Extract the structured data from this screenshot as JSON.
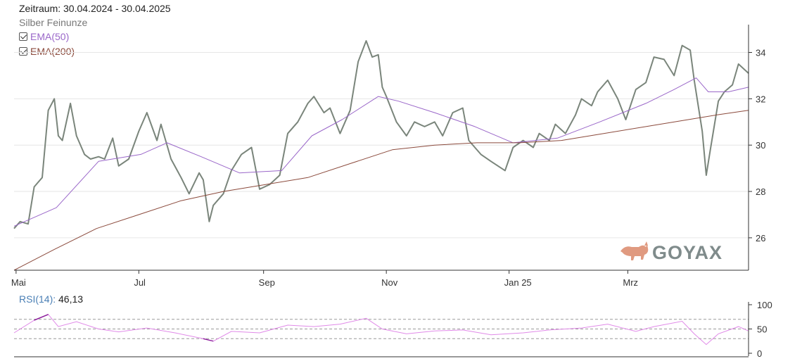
{
  "header": {
    "period": "Zeitraum: 30.04.2024 - 30.04.2025",
    "instrument": "Silber Feinunze"
  },
  "legend": [
    {
      "label": "EMA(50)",
      "checked": true,
      "color": "#9a67c9"
    },
    {
      "label": "EMA(200)",
      "checked": true,
      "color": "#8b4a3c"
    }
  ],
  "watermark": "GOYAX",
  "colors": {
    "price": "#7a857b",
    "ema50": "#9a67c9",
    "ema200": "#8b4a3c",
    "rsi": "#e08ae8",
    "rsi_extreme": "#8a1a9a",
    "logo": "#e09a80",
    "rsi_label": "#4a7fb5"
  },
  "rsi": {
    "label": "RSI(14)",
    "value": "46,13"
  },
  "chart_data": [
    {
      "type": "line",
      "ylim": [
        24.6,
        35.2
      ],
      "yticks": [
        "26",
        "28",
        "30",
        "32",
        "34"
      ],
      "xticks": [
        "Mai",
        "Jul",
        "Sep",
        "Nov",
        "Jan 25",
        "Mrz"
      ],
      "grid": true,
      "legend_position": "top-left",
      "series": [
        {
          "name": "Silber Feinunze",
          "x": [
            "2024-04-30",
            "2024-05-03",
            "2024-05-07",
            "2024-05-10",
            "2024-05-14",
            "2024-05-17",
            "2024-05-20",
            "2024-05-22",
            "2024-05-24",
            "2024-05-28",
            "2024-05-31",
            "2024-06-04",
            "2024-06-07",
            "2024-06-11",
            "2024-06-14",
            "2024-06-18",
            "2024-06-21",
            "2024-06-26",
            "2024-07-01",
            "2024-07-05",
            "2024-07-10",
            "2024-07-12",
            "2024-07-17",
            "2024-07-22",
            "2024-07-26",
            "2024-07-31",
            "2024-08-02",
            "2024-08-05",
            "2024-08-07",
            "2024-08-12",
            "2024-08-16",
            "2024-08-21",
            "2024-08-26",
            "2024-08-30",
            "2024-09-04",
            "2024-09-09",
            "2024-09-13",
            "2024-09-18",
            "2024-09-23",
            "2024-09-26",
            "2024-10-01",
            "2024-10-04",
            "2024-10-09",
            "2024-10-14",
            "2024-10-18",
            "2024-10-22",
            "2024-10-25",
            "2024-10-28",
            "2024-10-30",
            "2024-11-01",
            "2024-11-06",
            "2024-11-11",
            "2024-11-15",
            "2024-11-20",
            "2024-11-25",
            "2024-11-29",
            "2024-12-04",
            "2024-12-09",
            "2024-12-12",
            "2024-12-18",
            "2024-12-23",
            "2024-12-30",
            "2025-01-03",
            "2025-01-08",
            "2025-01-13",
            "2025-01-16",
            "2025-01-21",
            "2025-01-24",
            "2025-01-29",
            "2025-02-03",
            "2025-02-06",
            "2025-02-11",
            "2025-02-14",
            "2025-02-19",
            "2025-02-24",
            "2025-02-28",
            "2025-03-05",
            "2025-03-10",
            "2025-03-14",
            "2025-03-19",
            "2025-03-24",
            "2025-03-28",
            "2025-04-01",
            "2025-04-03",
            "2025-04-07",
            "2025-04-09",
            "2025-04-11",
            "2025-04-15",
            "2025-04-18",
            "2025-04-22",
            "2025-04-25",
            "2025-04-30"
          ],
          "y": [
            26.4,
            26.7,
            26.6,
            28.2,
            28.6,
            31.5,
            32.0,
            30.4,
            30.2,
            31.8,
            30.4,
            29.6,
            29.4,
            29.5,
            29.4,
            30.3,
            29.1,
            29.4,
            30.6,
            31.4,
            30.2,
            30.9,
            29.4,
            28.6,
            27.9,
            28.8,
            28.5,
            26.7,
            27.4,
            27.9,
            28.9,
            29.6,
            29.9,
            28.1,
            28.3,
            28.7,
            30.5,
            31.0,
            31.8,
            32.1,
            31.4,
            31.6,
            30.5,
            31.5,
            33.6,
            34.5,
            33.8,
            33.9,
            32.5,
            32.1,
            31.0,
            30.4,
            31.0,
            30.8,
            31.0,
            30.4,
            31.4,
            31.6,
            30.2,
            29.6,
            29.3,
            28.9,
            29.9,
            30.2,
            29.9,
            30.5,
            30.2,
            30.9,
            30.5,
            31.3,
            32.0,
            31.7,
            32.3,
            32.8,
            32.0,
            31.1,
            32.4,
            32.7,
            33.8,
            33.7,
            33.0,
            34.3,
            34.1,
            32.8,
            30.6,
            28.7,
            29.8,
            31.9,
            32.3,
            32.6,
            33.5,
            33.1
          ]
        },
        {
          "name": "EMA(50)",
          "x": [
            "2024-04-30",
            "2024-05-21",
            "2024-06-11",
            "2024-07-02",
            "2024-07-15",
            "2024-08-01",
            "2024-08-20",
            "2024-09-10",
            "2024-09-25",
            "2024-10-10",
            "2024-10-28",
            "2024-11-07",
            "2024-11-25",
            "2024-12-15",
            "2025-01-03",
            "2025-01-25",
            "2025-02-15",
            "2025-03-10",
            "2025-03-24",
            "2025-04-04",
            "2025-04-10",
            "2025-04-20",
            "2025-04-30"
          ],
          "y": [
            26.5,
            27.3,
            29.3,
            29.6,
            30.1,
            29.5,
            28.8,
            28.9,
            30.4,
            31.1,
            32.1,
            31.9,
            31.4,
            30.8,
            30.1,
            30.3,
            31.0,
            31.8,
            32.4,
            32.9,
            32.3,
            32.3,
            32.5
          ]
        },
        {
          "name": "EMA(200)",
          "x": [
            "2024-04-30",
            "2024-05-20",
            "2024-06-10",
            "2024-07-01",
            "2024-07-22",
            "2024-08-12",
            "2024-09-02",
            "2024-09-23",
            "2024-10-14",
            "2024-11-04",
            "2024-11-25",
            "2024-12-16",
            "2025-01-06",
            "2025-01-27",
            "2025-02-17",
            "2025-03-10",
            "2025-03-31",
            "2025-04-14",
            "2025-04-30"
          ],
          "y": [
            24.6,
            25.5,
            26.4,
            27.0,
            27.6,
            28.0,
            28.3,
            28.6,
            29.2,
            29.8,
            30.0,
            30.1,
            30.1,
            30.2,
            30.5,
            30.8,
            31.1,
            31.3,
            31.5
          ]
        }
      ]
    },
    {
      "type": "line",
      "ylim": [
        0,
        100
      ],
      "yticks": [
        "0",
        "50",
        "100"
      ],
      "reference_lines": [
        30,
        50,
        70
      ],
      "series": [
        {
          "name": "RSI(14)",
          "x": [
            "2024-04-30",
            "2024-05-10",
            "2024-05-17",
            "2024-05-22",
            "2024-05-31",
            "2024-06-11",
            "2024-06-21",
            "2024-07-05",
            "2024-07-19",
            "2024-08-02",
            "2024-08-07",
            "2024-08-16",
            "2024-08-30",
            "2024-09-13",
            "2024-09-26",
            "2024-10-09",
            "2024-10-22",
            "2024-10-30",
            "2024-11-11",
            "2024-11-25",
            "2024-12-09",
            "2024-12-23",
            "2025-01-08",
            "2025-01-21",
            "2025-02-06",
            "2025-02-19",
            "2025-03-05",
            "2025-03-14",
            "2025-03-28",
            "2025-04-03",
            "2025-04-09",
            "2025-04-15",
            "2025-04-25",
            "2025-04-30"
          ],
          "y": [
            42,
            68,
            80,
            55,
            65,
            50,
            44,
            52,
            42,
            30,
            25,
            45,
            42,
            58,
            55,
            60,
            72,
            50,
            40,
            46,
            48,
            38,
            42,
            48,
            52,
            60,
            45,
            55,
            66,
            40,
            18,
            40,
            55,
            46
          ]
        }
      ]
    }
  ]
}
